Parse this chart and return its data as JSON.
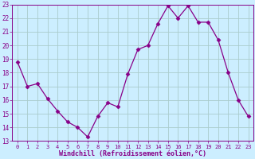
{
  "x": [
    0,
    1,
    2,
    3,
    4,
    5,
    6,
    7,
    8,
    9,
    10,
    11,
    12,
    13,
    14,
    15,
    16,
    17,
    18,
    19,
    20,
    21,
    22,
    23
  ],
  "y": [
    18.8,
    17.0,
    17.2,
    16.1,
    15.2,
    14.4,
    14.0,
    13.3,
    14.8,
    15.8,
    15.5,
    17.9,
    19.7,
    20.0,
    21.6,
    22.9,
    22.0,
    22.9,
    21.7,
    21.7,
    20.4,
    18.0,
    16.0,
    14.8
  ],
  "line_color": "#880088",
  "marker": "D",
  "marker_size": 2.5,
  "bg_color": "#cceeff",
  "grid_color": "#aacccc",
  "xlabel": "Windchill (Refroidissement éolien,°C)",
  "ylabel_ticks": [
    13,
    14,
    15,
    16,
    17,
    18,
    19,
    20,
    21,
    22,
    23
  ],
  "ylim": [
    13,
    23
  ],
  "xlim": [
    -0.5,
    23.5
  ],
  "xticks": [
    0,
    1,
    2,
    3,
    4,
    5,
    6,
    7,
    8,
    9,
    10,
    11,
    12,
    13,
    14,
    15,
    16,
    17,
    18,
    19,
    20,
    21,
    22,
    23
  ],
  "xlabel_color": "#880088",
  "tick_color": "#880088",
  "tick_fontsize": 5.0,
  "ytick_fontsize": 5.5
}
